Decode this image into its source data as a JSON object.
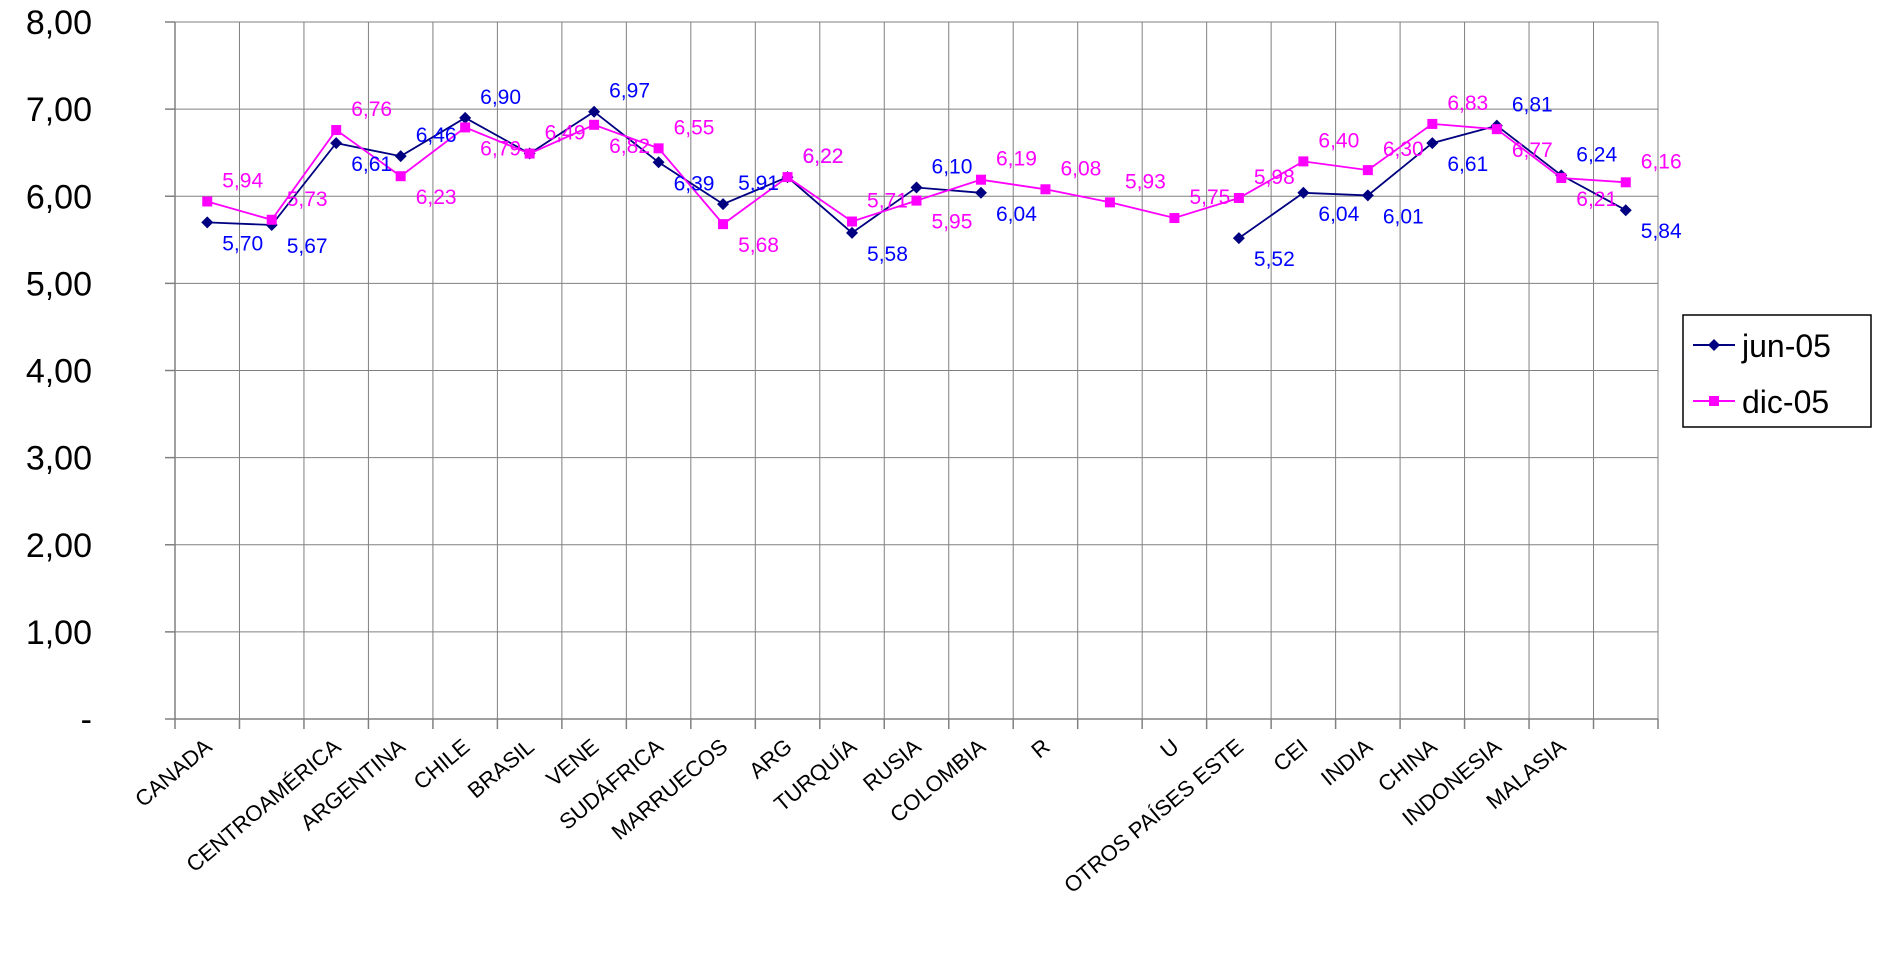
{
  "chart_data": {
    "type": "line",
    "title": "",
    "xlabel": "",
    "ylabel": "",
    "ylim": [
      0,
      8
    ],
    "grid": true,
    "legend_position": "right",
    "y_ticks": [
      "-",
      "1,00",
      "2,00",
      "3,00",
      "4,00",
      "5,00",
      "6,00",
      "7,00",
      "8,00"
    ],
    "categories": [
      "CANADA",
      "",
      "CENTROAMÉRICA",
      "ARGENTINA",
      "CHILE",
      "BRASIL",
      "VENE",
      "SUDÁFRICA",
      "MARRUECOS",
      "ARG",
      "TURQUÍA",
      "RUSIA",
      "COLOMBIA",
      "R",
      "",
      "U",
      "OTROS PAÍSES ESTE",
      "CEI",
      "INDIA",
      "CHINA",
      "INDONESIA",
      "MALASIA",
      ""
    ],
    "series": [
      {
        "name": "jun-05",
        "color": "#000080",
        "marker": "diamond",
        "label_color": "#0000FF",
        "values": [
          5.7,
          5.67,
          6.61,
          6.46,
          6.9,
          6.49,
          6.97,
          6.39,
          5.91,
          6.22,
          5.58,
          6.1,
          6.04,
          null,
          null,
          null,
          5.52,
          6.04,
          6.01,
          6.61,
          6.81,
          6.24,
          5.84
        ],
        "labels": [
          "5,70",
          "5,67",
          "6,61",
          "6,46",
          "6,90",
          "",
          "6,97",
          "6,39",
          "5,91",
          "6,22",
          "5,58",
          "6,10",
          "6,04",
          "",
          "",
          "",
          "5,52",
          "6,04",
          "6,01",
          "6,61",
          "6,81",
          "6,24",
          "5,84"
        ]
      },
      {
        "name": "dic-05",
        "color": "#FF00FF",
        "marker": "square",
        "label_color": "#FF00FF",
        "values": [
          5.94,
          5.73,
          6.76,
          6.23,
          6.79,
          6.49,
          6.82,
          6.55,
          5.68,
          6.22,
          5.71,
          5.95,
          6.19,
          6.08,
          5.93,
          5.75,
          5.98,
          6.4,
          6.3,
          6.83,
          6.77,
          6.21,
          6.16
        ],
        "labels": [
          "5,94",
          "5,73",
          "6,76",
          "6,23",
          "6,79",
          "6,49",
          "6,82",
          "6,55",
          "5,68",
          "6,22",
          "5,71",
          "5,95",
          "6,19",
          "6,08",
          "5,93",
          "5,75",
          "5,98",
          "6,40",
          "6,30",
          "6,83",
          "6,77",
          "6,21",
          "6,16"
        ]
      }
    ]
  }
}
